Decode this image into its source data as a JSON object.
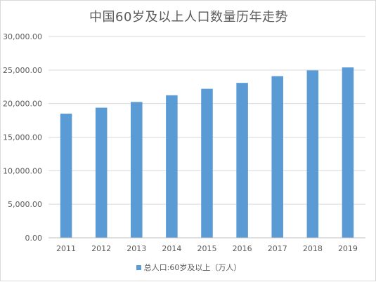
{
  "chart_data": {
    "type": "bar",
    "title": "中国60岁及以上人口数量历年走势",
    "xlabel": "",
    "ylabel": "",
    "categories": [
      "2011",
      "2012",
      "2013",
      "2014",
      "2015",
      "2016",
      "2017",
      "2018",
      "2019"
    ],
    "series": [
      {
        "name": "总人口:60岁及以上（万人）",
        "values": [
          18499,
          19390,
          20243,
          21242,
          22200,
          23086,
          24090,
          24949,
          25388
        ]
      }
    ],
    "ylim": [
      0,
      30000
    ],
    "yticks": [
      "0.00",
      "5,000.00",
      "10,000.00",
      "15,000.00",
      "20,000.00",
      "25,000.00",
      "30,000.00"
    ],
    "ytick_values": [
      0,
      5000,
      10000,
      15000,
      20000,
      25000,
      30000
    ],
    "grid": true,
    "legend_position": "bottom",
    "colors": {
      "bar": "#5b9bd5",
      "grid": "#d9d9d9",
      "axis": "#bfbfbf",
      "text": "#595959"
    }
  }
}
